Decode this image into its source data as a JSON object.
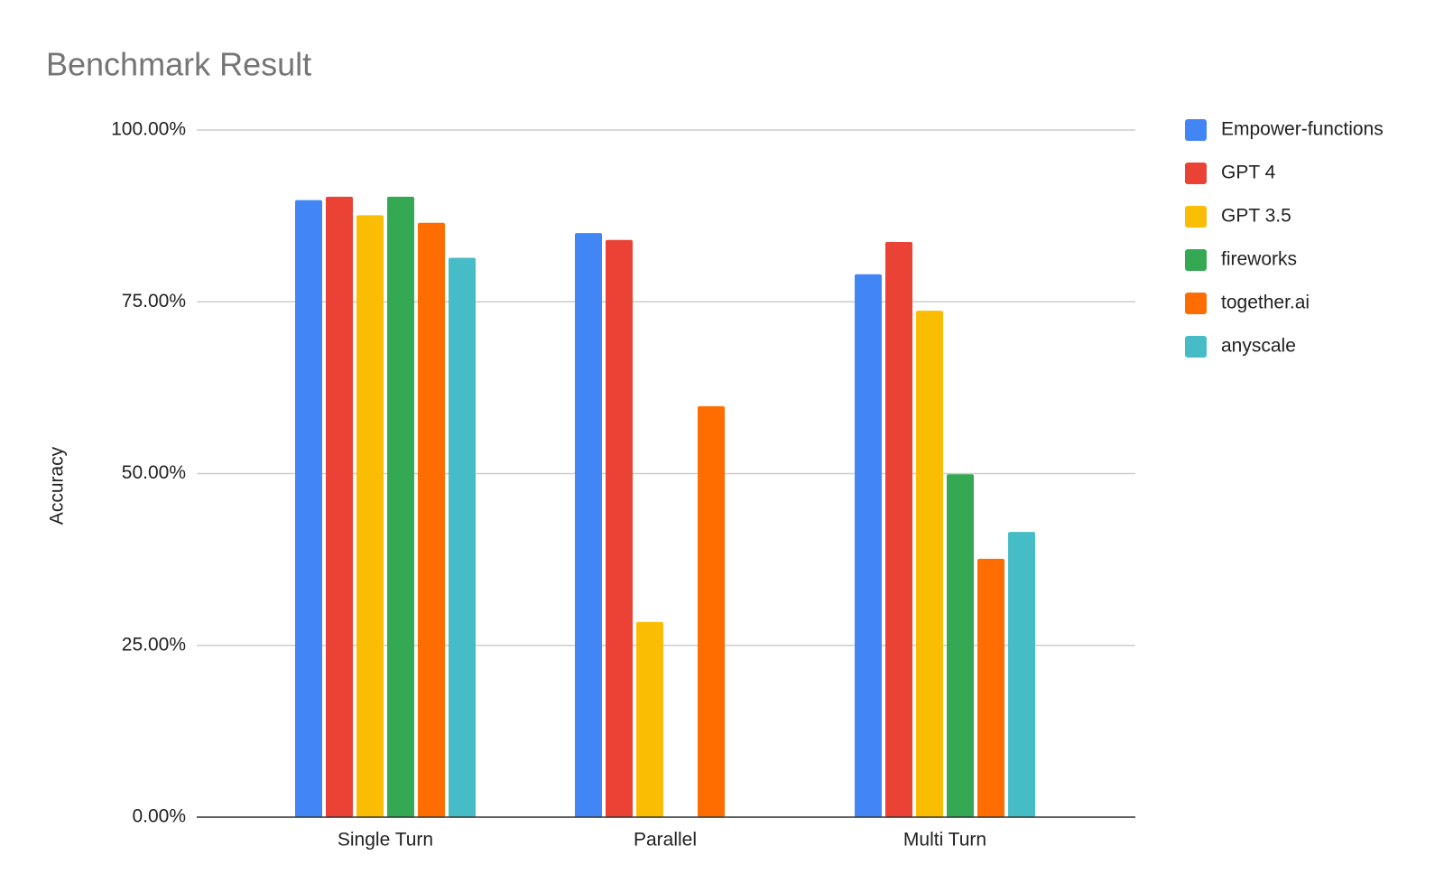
{
  "chart_data": {
    "type": "bar",
    "title": "Benchmark Result",
    "y_label": "Accuracy",
    "categories": [
      "Single Turn",
      "Parallel",
      "Multi Turn"
    ],
    "series": [
      {
        "name": "Empower-functions",
        "color": "#4285f4",
        "values": [
          89.8,
          85.0,
          79.0
        ]
      },
      {
        "name": "GPT 4",
        "color": "#ea4335",
        "values": [
          90.3,
          84.0,
          83.7
        ]
      },
      {
        "name": "GPT 3.5",
        "color": "#fbbc04",
        "values": [
          87.6,
          28.4,
          73.7
        ]
      },
      {
        "name": "fireworks",
        "color": "#34a853",
        "values": [
          90.3,
          null,
          49.9
        ]
      },
      {
        "name": "together.ai",
        "color": "#ff6d01",
        "values": [
          86.5,
          59.8,
          37.6
        ]
      },
      {
        "name": "anyscale",
        "color": "#46bdc6",
        "values": [
          81.4,
          null,
          41.5
        ]
      }
    ],
    "ylim": [
      0,
      100
    ],
    "yticks": [
      {
        "value": 0,
        "label": "0.00%"
      },
      {
        "value": 25,
        "label": "25.00%"
      },
      {
        "value": 50,
        "label": "50.00%"
      },
      {
        "value": 75,
        "label": "75.00%"
      },
      {
        "value": 100,
        "label": "100.00%"
      }
    ],
    "grid": true,
    "legend": "right"
  }
}
